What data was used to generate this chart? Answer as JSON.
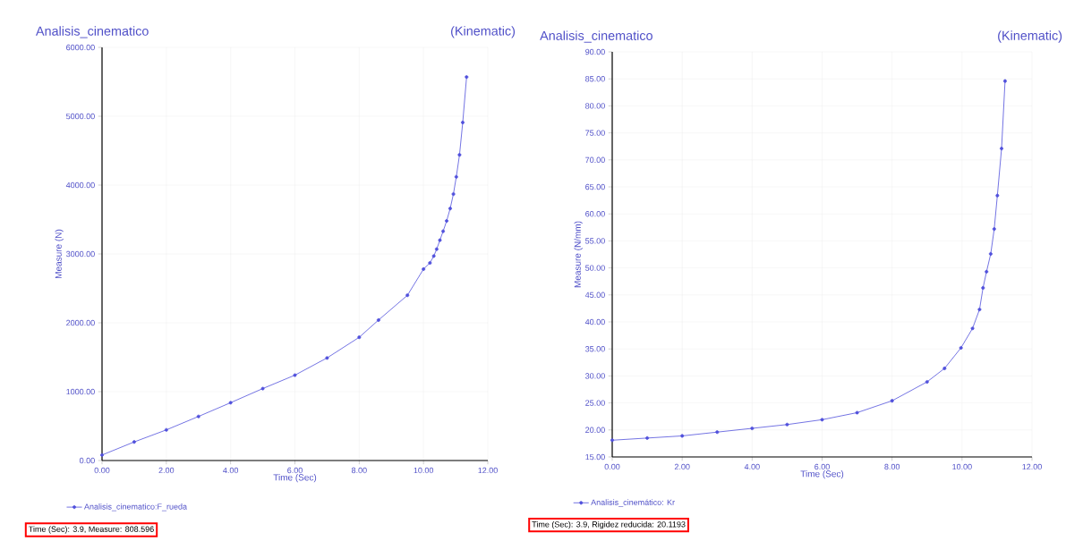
{
  "chart_data": [
    {
      "type": "line",
      "title": "Analisis_cinematico",
      "subtitle": "(Kinematic)",
      "xlabel": "Time (Sec)",
      "ylabel": "Measure (N)",
      "x": [
        0,
        1,
        2,
        3,
        4,
        5,
        6,
        7,
        8,
        8.6,
        9.5,
        10,
        10.2,
        10.32,
        10.41,
        10.51,
        10.61,
        10.72,
        10.83,
        10.93,
        11.02,
        11.12,
        11.22,
        11.34
      ],
      "series": [
        {
          "name": "Analisis_cinematico:F_rueda",
          "color": "#5050dc",
          "values": [
            80,
            270,
            445,
            640,
            840,
            1045,
            1240,
            1490,
            1790,
            2040,
            2400,
            2780,
            2870,
            2970,
            3070,
            3200,
            3330,
            3480,
            3660,
            3870,
            4120,
            4440,
            4910,
            5570
          ]
        }
      ],
      "xlim": [
        0,
        12
      ],
      "ylim": [
        0,
        6000
      ],
      "xticks": [
        {
          "value": 0,
          "label": "0.00"
        },
        {
          "value": 2,
          "label": "2.00"
        },
        {
          "value": 4,
          "label": "4.00"
        },
        {
          "value": 6,
          "label": "6.00"
        },
        {
          "value": 8,
          "label": "8.00"
        },
        {
          "value": 10,
          "label": "10.00"
        },
        {
          "value": 12,
          "label": "12.00"
        }
      ],
      "yticks": [
        {
          "value": 0,
          "label": "0.00"
        },
        {
          "value": 1000,
          "label": "1000.00"
        },
        {
          "value": 2000,
          "label": "2000.00"
        },
        {
          "value": 3000,
          "label": "3000.00"
        },
        {
          "value": 4000,
          "label": "4000.00"
        },
        {
          "value": 5000,
          "label": "5000.00"
        },
        {
          "value": 6000,
          "label": "6000.00"
        }
      ],
      "grid": true,
      "legend": "bottom",
      "marker": "circle",
      "annotations": [
        "Time (Sec): 3.9, Measure: 808.596"
      ]
    },
    {
      "type": "line",
      "title": "Analisis_cinematico",
      "subtitle": "(Kinematic)",
      "xlabel": "Time (Sec)",
      "ylabel": "Measure (N/mm)",
      "x": [
        0,
        1,
        2,
        3,
        4,
        5,
        6,
        7,
        8,
        9,
        9.5,
        9.97,
        10.3,
        10.5,
        10.6,
        10.7,
        10.82,
        10.92,
        11.01,
        11.13,
        11.23
      ],
      "series": [
        {
          "name": "Analisis_cinemático: Kr",
          "color": "#5050dc",
          "values": [
            18.1,
            18.5,
            18.9,
            19.6,
            20.3,
            21.0,
            21.9,
            23.2,
            25.4,
            28.9,
            31.4,
            35.2,
            38.8,
            42.3,
            46.3,
            49.3,
            52.6,
            57.2,
            63.4,
            72.1,
            84.6
          ]
        }
      ],
      "xlim": [
        0,
        12
      ],
      "ylim": [
        15,
        90
      ],
      "xticks": [
        {
          "value": 0,
          "label": "0.00"
        },
        {
          "value": 2,
          "label": "2.00"
        },
        {
          "value": 4,
          "label": "4.00"
        },
        {
          "value": 6,
          "label": "6.00"
        },
        {
          "value": 8,
          "label": "8.00"
        },
        {
          "value": 10,
          "label": "10.00"
        },
        {
          "value": 12,
          "label": "12.00"
        }
      ],
      "yticks": [
        {
          "value": 15,
          "label": "15.00"
        },
        {
          "value": 20,
          "label": "20.00"
        },
        {
          "value": 25,
          "label": "25.00"
        },
        {
          "value": 30,
          "label": "30.00"
        },
        {
          "value": 35,
          "label": "35.00"
        },
        {
          "value": 40,
          "label": "40.00"
        },
        {
          "value": 45,
          "label": "45.00"
        },
        {
          "value": 50,
          "label": "50.00"
        },
        {
          "value": 55,
          "label": "55.00"
        },
        {
          "value": 60,
          "label": "60.00"
        },
        {
          "value": 65,
          "label": "65.00"
        },
        {
          "value": 70,
          "label": "70.00"
        },
        {
          "value": 75,
          "label": "75.00"
        },
        {
          "value": 80,
          "label": "80.00"
        },
        {
          "value": 85,
          "label": "85.00"
        },
        {
          "value": 90,
          "label": "90.00"
        }
      ],
      "grid": true,
      "legend": "bottom",
      "marker": "circle",
      "annotations": [
        "Time (Sec): 3.9, Rigidez reducida: 20.1193"
      ]
    }
  ]
}
